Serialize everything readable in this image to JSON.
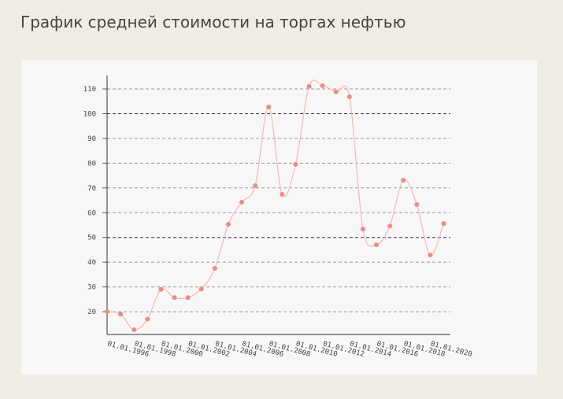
{
  "title": "График средней стоимости на торгах нефтью",
  "chart_data": {
    "type": "line",
    "categories": [
      "01.01.1996",
      null,
      "01.01.1998",
      null,
      "01.01.2000",
      null,
      "01.01.2002",
      null,
      "01.01.2004",
      null,
      "01.01.2006",
      null,
      "01.01.2008",
      null,
      "01.01.2010",
      null,
      "01.01.2012",
      null,
      "01.01.2014",
      null,
      "01.01.2016",
      null,
      "01.01.2018",
      null,
      "01.01.2020",
      null
    ],
    "values": [
      20,
      19,
      12.7,
      17,
      29,
      25.7,
      25.7,
      29.2,
      37.5,
      55.3,
      64.2,
      70.9,
      102.7,
      67.4,
      79.5,
      111,
      111.3,
      108.8,
      106.8,
      53.4,
      47,
      54.6,
      73.1,
      63.3,
      42.9,
      55.6
    ],
    "color": "#f08a80",
    "ylim": [
      10.8,
      115.4
    ],
    "yticks": [
      20,
      30,
      40,
      50,
      60,
      70,
      80,
      90,
      100,
      110
    ],
    "grid": true
  }
}
